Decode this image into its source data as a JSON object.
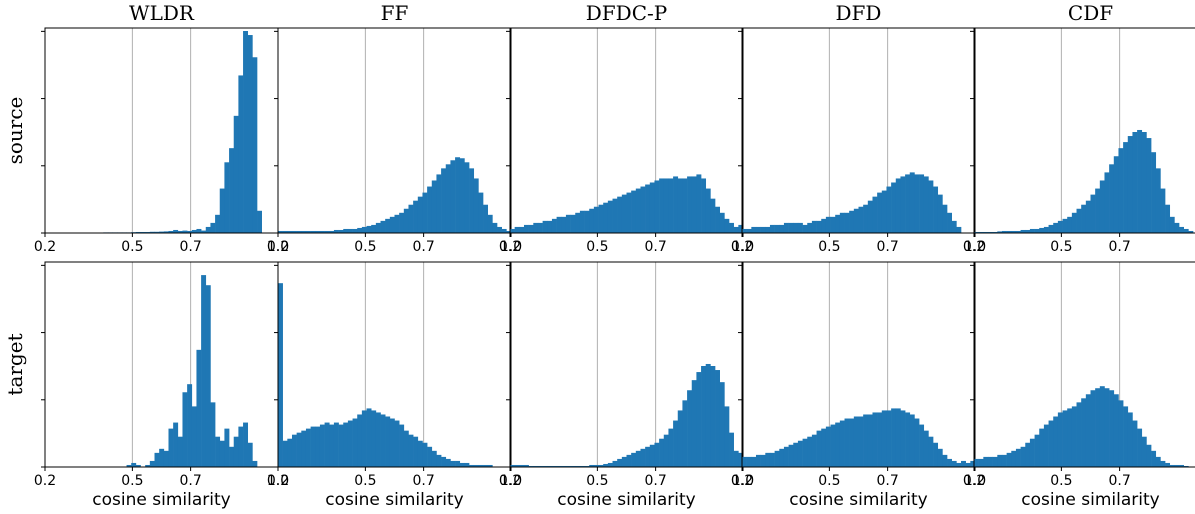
{
  "chart_data": {
    "type": "bar",
    "layout": "grid 2 rows x 5 columns of histograms",
    "column_titles": [
      "WLDR",
      "FF",
      "DFDC-P",
      "DFD",
      "CDF"
    ],
    "row_labels": [
      "source",
      "target"
    ],
    "xlabel": "cosine similarity",
    "xlim": [
      0.2,
      1.0
    ],
    "xticks": [
      "0.2",
      "0.5",
      "0.7",
      "1.0"
    ],
    "x_grid": [
      0.5,
      0.7
    ],
    "y_ticklabels_shown": false,
    "color": "#1f77b4",
    "bin_width": 0.016,
    "panels": [
      {
        "row": "source",
        "column": "WLDR",
        "ymax": 1.0,
        "bin_start": [
          0.4,
          0.416,
          0.432,
          0.448,
          0.464,
          0.48,
          0.496,
          0.512,
          0.528,
          0.544,
          0.56,
          0.576,
          0.592,
          0.608,
          0.624,
          0.64,
          0.656,
          0.672,
          0.688,
          0.704,
          0.72,
          0.736,
          0.752,
          0.768,
          0.784,
          0.8,
          0.816,
          0.832,
          0.848,
          0.864,
          0.88,
          0.896,
          0.912,
          0.928
        ],
        "values": [
          0.003,
          0.003,
          0.003,
          0.003,
          0.003,
          0.003,
          0.004,
          0.005,
          0.005,
          0.005,
          0.006,
          0.006,
          0.007,
          0.008,
          0.01,
          0.015,
          0.01,
          0.012,
          0.01,
          0.015,
          0.02,
          0.012,
          0.03,
          0.05,
          0.09,
          0.22,
          0.35,
          0.42,
          0.58,
          0.78,
          1.0,
          0.98,
          0.87,
          0.11
        ]
      },
      {
        "row": "source",
        "column": "FF",
        "ymax": 1.0,
        "bin_start": [
          0.2,
          0.216,
          0.232,
          0.248,
          0.264,
          0.28,
          0.296,
          0.312,
          0.328,
          0.344,
          0.36,
          0.376,
          0.392,
          0.408,
          0.424,
          0.44,
          0.456,
          0.472,
          0.488,
          0.504,
          0.52,
          0.536,
          0.552,
          0.568,
          0.584,
          0.6,
          0.616,
          0.632,
          0.648,
          0.664,
          0.68,
          0.696,
          0.712,
          0.728,
          0.744,
          0.76,
          0.776,
          0.792,
          0.808,
          0.824,
          0.84,
          0.856,
          0.872,
          0.888,
          0.904,
          0.92,
          0.936,
          0.952,
          0.968,
          0.984
        ],
        "values": [
          0.01,
          0.01,
          0.01,
          0.01,
          0.01,
          0.01,
          0.01,
          0.01,
          0.01,
          0.01,
          0.01,
          0.01,
          0.015,
          0.015,
          0.02,
          0.02,
          0.02,
          0.025,
          0.03,
          0.035,
          0.04,
          0.05,
          0.06,
          0.07,
          0.08,
          0.09,
          0.1,
          0.12,
          0.14,
          0.16,
          0.18,
          0.2,
          0.23,
          0.26,
          0.29,
          0.32,
          0.34,
          0.36,
          0.375,
          0.37,
          0.35,
          0.32,
          0.27,
          0.2,
          0.14,
          0.09,
          0.05,
          0.03,
          0.02,
          0.01
        ]
      },
      {
        "row": "source",
        "column": "DFDC-P",
        "ymax": 1.0,
        "bin_start": [
          0.2,
          0.216,
          0.232,
          0.248,
          0.264,
          0.28,
          0.296,
          0.312,
          0.328,
          0.344,
          0.36,
          0.376,
          0.392,
          0.408,
          0.424,
          0.44,
          0.456,
          0.472,
          0.488,
          0.504,
          0.52,
          0.536,
          0.552,
          0.568,
          0.584,
          0.6,
          0.616,
          0.632,
          0.648,
          0.664,
          0.68,
          0.696,
          0.712,
          0.728,
          0.744,
          0.76,
          0.776,
          0.792,
          0.808,
          0.824,
          0.84,
          0.856,
          0.872,
          0.888,
          0.904,
          0.92,
          0.936,
          0.952,
          0.968,
          0.984
        ],
        "values": [
          0.02,
          0.03,
          0.03,
          0.04,
          0.04,
          0.05,
          0.05,
          0.06,
          0.06,
          0.07,
          0.08,
          0.08,
          0.09,
          0.09,
          0.1,
          0.11,
          0.11,
          0.12,
          0.13,
          0.14,
          0.15,
          0.16,
          0.17,
          0.18,
          0.19,
          0.2,
          0.21,
          0.22,
          0.23,
          0.24,
          0.25,
          0.26,
          0.27,
          0.27,
          0.27,
          0.28,
          0.27,
          0.27,
          0.28,
          0.28,
          0.29,
          0.27,
          0.22,
          0.17,
          0.13,
          0.1,
          0.07,
          0.05,
          0.03,
          0.04
        ]
      },
      {
        "row": "source",
        "column": "DFD",
        "ymax": 1.0,
        "bin_start": [
          0.2,
          0.216,
          0.232,
          0.248,
          0.264,
          0.28,
          0.296,
          0.312,
          0.328,
          0.344,
          0.36,
          0.376,
          0.392,
          0.408,
          0.424,
          0.44,
          0.456,
          0.472,
          0.488,
          0.504,
          0.52,
          0.536,
          0.552,
          0.568,
          0.584,
          0.6,
          0.616,
          0.632,
          0.648,
          0.664,
          0.68,
          0.696,
          0.712,
          0.728,
          0.744,
          0.76,
          0.776,
          0.792,
          0.808,
          0.824,
          0.84,
          0.856,
          0.872,
          0.888,
          0.904,
          0.92,
          0.936
        ],
        "values": [
          0.02,
          0.02,
          0.03,
          0.03,
          0.03,
          0.03,
          0.04,
          0.04,
          0.04,
          0.05,
          0.05,
          0.05,
          0.05,
          0.04,
          0.05,
          0.06,
          0.06,
          0.07,
          0.08,
          0.08,
          0.09,
          0.1,
          0.1,
          0.11,
          0.12,
          0.13,
          0.14,
          0.16,
          0.18,
          0.2,
          0.21,
          0.23,
          0.25,
          0.27,
          0.28,
          0.29,
          0.3,
          0.29,
          0.29,
          0.28,
          0.26,
          0.23,
          0.19,
          0.14,
          0.1,
          0.06,
          0.03
        ]
      },
      {
        "row": "source",
        "column": "CDF",
        "ymax": 1.0,
        "bin_start": [
          0.2,
          0.216,
          0.232,
          0.248,
          0.264,
          0.28,
          0.296,
          0.312,
          0.328,
          0.344,
          0.36,
          0.376,
          0.392,
          0.408,
          0.424,
          0.44,
          0.456,
          0.472,
          0.488,
          0.504,
          0.52,
          0.536,
          0.552,
          0.568,
          0.584,
          0.6,
          0.616,
          0.632,
          0.648,
          0.664,
          0.68,
          0.696,
          0.712,
          0.728,
          0.744,
          0.76,
          0.776,
          0.792,
          0.808,
          0.824,
          0.84,
          0.856,
          0.872,
          0.888,
          0.904,
          0.92,
          0.936
        ],
        "values": [
          0.005,
          0.005,
          0.005,
          0.005,
          0.005,
          0.008,
          0.01,
          0.01,
          0.01,
          0.01,
          0.015,
          0.015,
          0.02,
          0.02,
          0.025,
          0.03,
          0.04,
          0.05,
          0.06,
          0.07,
          0.08,
          0.1,
          0.12,
          0.14,
          0.16,
          0.19,
          0.22,
          0.26,
          0.3,
          0.34,
          0.38,
          0.42,
          0.45,
          0.48,
          0.5,
          0.51,
          0.5,
          0.47,
          0.4,
          0.32,
          0.22,
          0.14,
          0.08,
          0.05,
          0.03,
          0.02,
          0.01
        ]
      },
      {
        "row": "target",
        "column": "WLDR",
        "ymax": 1.0,
        "bin_start": [
          0.48,
          0.496,
          0.512,
          0.528,
          0.544,
          0.56,
          0.576,
          0.592,
          0.608,
          0.624,
          0.64,
          0.656,
          0.672,
          0.688,
          0.704,
          0.72,
          0.736,
          0.752,
          0.768,
          0.784,
          0.8,
          0.816,
          0.832,
          0.848,
          0.864,
          0.88,
          0.896,
          0.912
        ],
        "values": [
          0.01,
          0.02,
          0.01,
          0.0,
          0.01,
          0.03,
          0.07,
          0.09,
          0.08,
          0.19,
          0.22,
          0.15,
          0.37,
          0.41,
          0.3,
          0.58,
          0.95,
          0.9,
          0.32,
          0.15,
          0.13,
          0.19,
          0.1,
          0.15,
          0.2,
          0.22,
          0.12,
          0.03
        ]
      },
      {
        "row": "target",
        "column": "FF",
        "ymax": 1.0,
        "bin_start": [
          0.2,
          0.216,
          0.232,
          0.248,
          0.264,
          0.28,
          0.296,
          0.312,
          0.328,
          0.344,
          0.36,
          0.376,
          0.392,
          0.408,
          0.424,
          0.44,
          0.456,
          0.472,
          0.488,
          0.504,
          0.52,
          0.536,
          0.552,
          0.568,
          0.584,
          0.6,
          0.616,
          0.632,
          0.648,
          0.664,
          0.68,
          0.696,
          0.712,
          0.728,
          0.744,
          0.76,
          0.776,
          0.792,
          0.808,
          0.824,
          0.84,
          0.856,
          0.872,
          0.888,
          0.904,
          0.92
        ],
        "values": [
          0.91,
          0.13,
          0.14,
          0.16,
          0.17,
          0.18,
          0.19,
          0.2,
          0.2,
          0.21,
          0.22,
          0.21,
          0.22,
          0.21,
          0.22,
          0.23,
          0.24,
          0.26,
          0.28,
          0.29,
          0.28,
          0.27,
          0.26,
          0.25,
          0.24,
          0.23,
          0.21,
          0.18,
          0.16,
          0.15,
          0.13,
          0.12,
          0.1,
          0.08,
          0.06,
          0.05,
          0.04,
          0.03,
          0.03,
          0.02,
          0.02,
          0.01,
          0.01,
          0.01,
          0.01,
          0.01
        ]
      },
      {
        "row": "target",
        "column": "DFDC-P",
        "ymax": 1.0,
        "bin_start": [
          0.2,
          0.216,
          0.232,
          0.248,
          0.264,
          0.28,
          0.296,
          0.312,
          0.328,
          0.344,
          0.36,
          0.376,
          0.392,
          0.408,
          0.424,
          0.44,
          0.456,
          0.472,
          0.488,
          0.504,
          0.52,
          0.536,
          0.552,
          0.568,
          0.584,
          0.6,
          0.616,
          0.632,
          0.648,
          0.664,
          0.68,
          0.696,
          0.712,
          0.728,
          0.744,
          0.76,
          0.776,
          0.792,
          0.808,
          0.824,
          0.84,
          0.856,
          0.872,
          0.888,
          0.904,
          0.92,
          0.936,
          0.952,
          0.968,
          0.984
        ],
        "values": [
          0.01,
          0.01,
          0.01,
          0.01,
          0.005,
          0.005,
          0.005,
          0.005,
          0.005,
          0.005,
          0.005,
          0.005,
          0.005,
          0.005,
          0.005,
          0.005,
          0.005,
          0.01,
          0.01,
          0.01,
          0.015,
          0.02,
          0.03,
          0.04,
          0.05,
          0.06,
          0.07,
          0.08,
          0.09,
          0.1,
          0.11,
          0.12,
          0.14,
          0.16,
          0.19,
          0.23,
          0.28,
          0.33,
          0.38,
          0.43,
          0.47,
          0.5,
          0.51,
          0.5,
          0.48,
          0.42,
          0.3,
          0.17,
          0.08,
          0.07
        ]
      },
      {
        "row": "target",
        "column": "DFD",
        "ymax": 1.0,
        "bin_start": [
          0.2,
          0.216,
          0.232,
          0.248,
          0.264,
          0.28,
          0.296,
          0.312,
          0.328,
          0.344,
          0.36,
          0.376,
          0.392,
          0.408,
          0.424,
          0.44,
          0.456,
          0.472,
          0.488,
          0.504,
          0.52,
          0.536,
          0.552,
          0.568,
          0.584,
          0.6,
          0.616,
          0.632,
          0.648,
          0.664,
          0.68,
          0.696,
          0.712,
          0.728,
          0.744,
          0.76,
          0.776,
          0.792,
          0.808,
          0.824,
          0.84,
          0.856,
          0.872,
          0.888,
          0.904,
          0.92,
          0.936,
          0.952,
          0.968,
          0.984
        ],
        "values": [
          0.05,
          0.05,
          0.05,
          0.06,
          0.06,
          0.07,
          0.07,
          0.08,
          0.09,
          0.1,
          0.11,
          0.12,
          0.13,
          0.14,
          0.15,
          0.16,
          0.18,
          0.19,
          0.2,
          0.21,
          0.22,
          0.23,
          0.24,
          0.24,
          0.25,
          0.25,
          0.26,
          0.26,
          0.27,
          0.27,
          0.28,
          0.28,
          0.29,
          0.29,
          0.28,
          0.27,
          0.26,
          0.24,
          0.21,
          0.18,
          0.15,
          0.12,
          0.09,
          0.06,
          0.04,
          0.03,
          0.02,
          0.03,
          0.02,
          0.03
        ]
      },
      {
        "row": "target",
        "column": "CDF",
        "ymax": 1.0,
        "bin_start": [
          0.2,
          0.216,
          0.232,
          0.248,
          0.264,
          0.28,
          0.296,
          0.312,
          0.328,
          0.344,
          0.36,
          0.376,
          0.392,
          0.408,
          0.424,
          0.44,
          0.456,
          0.472,
          0.488,
          0.504,
          0.52,
          0.536,
          0.552,
          0.568,
          0.584,
          0.6,
          0.616,
          0.632,
          0.648,
          0.664,
          0.68,
          0.696,
          0.712,
          0.728,
          0.744,
          0.76,
          0.776,
          0.792,
          0.808,
          0.824,
          0.84,
          0.856,
          0.872,
          0.888,
          0.904,
          0.92
        ],
        "values": [
          0.04,
          0.04,
          0.05,
          0.05,
          0.05,
          0.06,
          0.06,
          0.07,
          0.08,
          0.09,
          0.1,
          0.12,
          0.14,
          0.16,
          0.19,
          0.21,
          0.23,
          0.25,
          0.27,
          0.28,
          0.29,
          0.3,
          0.32,
          0.34,
          0.36,
          0.38,
          0.39,
          0.4,
          0.39,
          0.38,
          0.36,
          0.33,
          0.3,
          0.27,
          0.23,
          0.19,
          0.15,
          0.11,
          0.08,
          0.05,
          0.03,
          0.02,
          0.01,
          0.01,
          0.01,
          0.005
        ]
      }
    ]
  }
}
